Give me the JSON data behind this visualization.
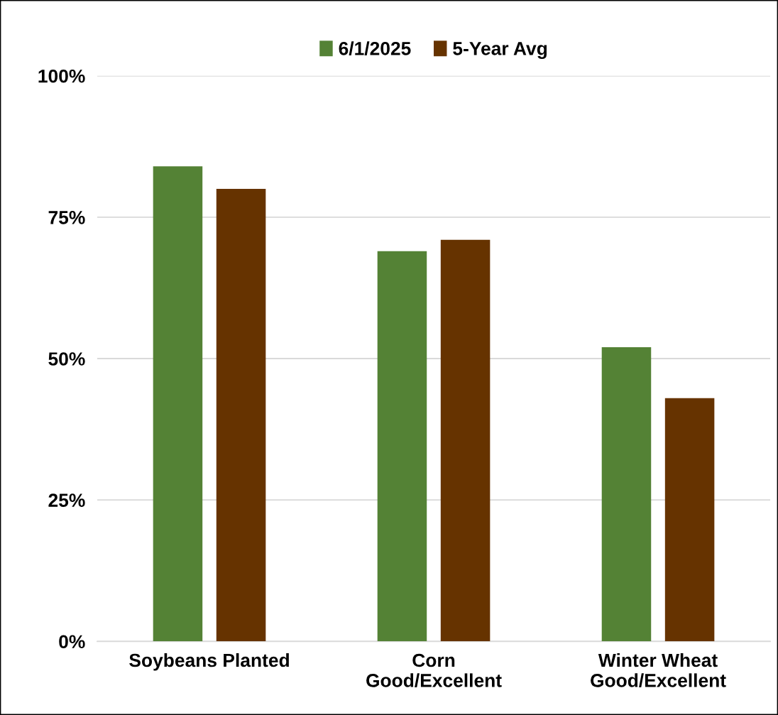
{
  "chart_data": {
    "type": "bar",
    "categories": [
      "Soybeans Planted",
      "Corn\nGood/Excellent",
      "Winter Wheat\nGood/Excellent"
    ],
    "series": [
      {
        "name": "6/1/2025",
        "color": "#548235",
        "values": [
          84,
          69,
          52
        ]
      },
      {
        "name": "5-Year Avg",
        "color": "#663300",
        "values": [
          80,
          71,
          43
        ]
      }
    ],
    "ylim": [
      0,
      100
    ],
    "yticks": [
      {
        "value": 0,
        "label": "0%"
      },
      {
        "value": 25,
        "label": "25%"
      },
      {
        "value": 50,
        "label": "50%"
      },
      {
        "value": 75,
        "label": "75%"
      },
      {
        "value": 100,
        "label": "100%"
      }
    ],
    "grid": "y",
    "legend": "top"
  }
}
